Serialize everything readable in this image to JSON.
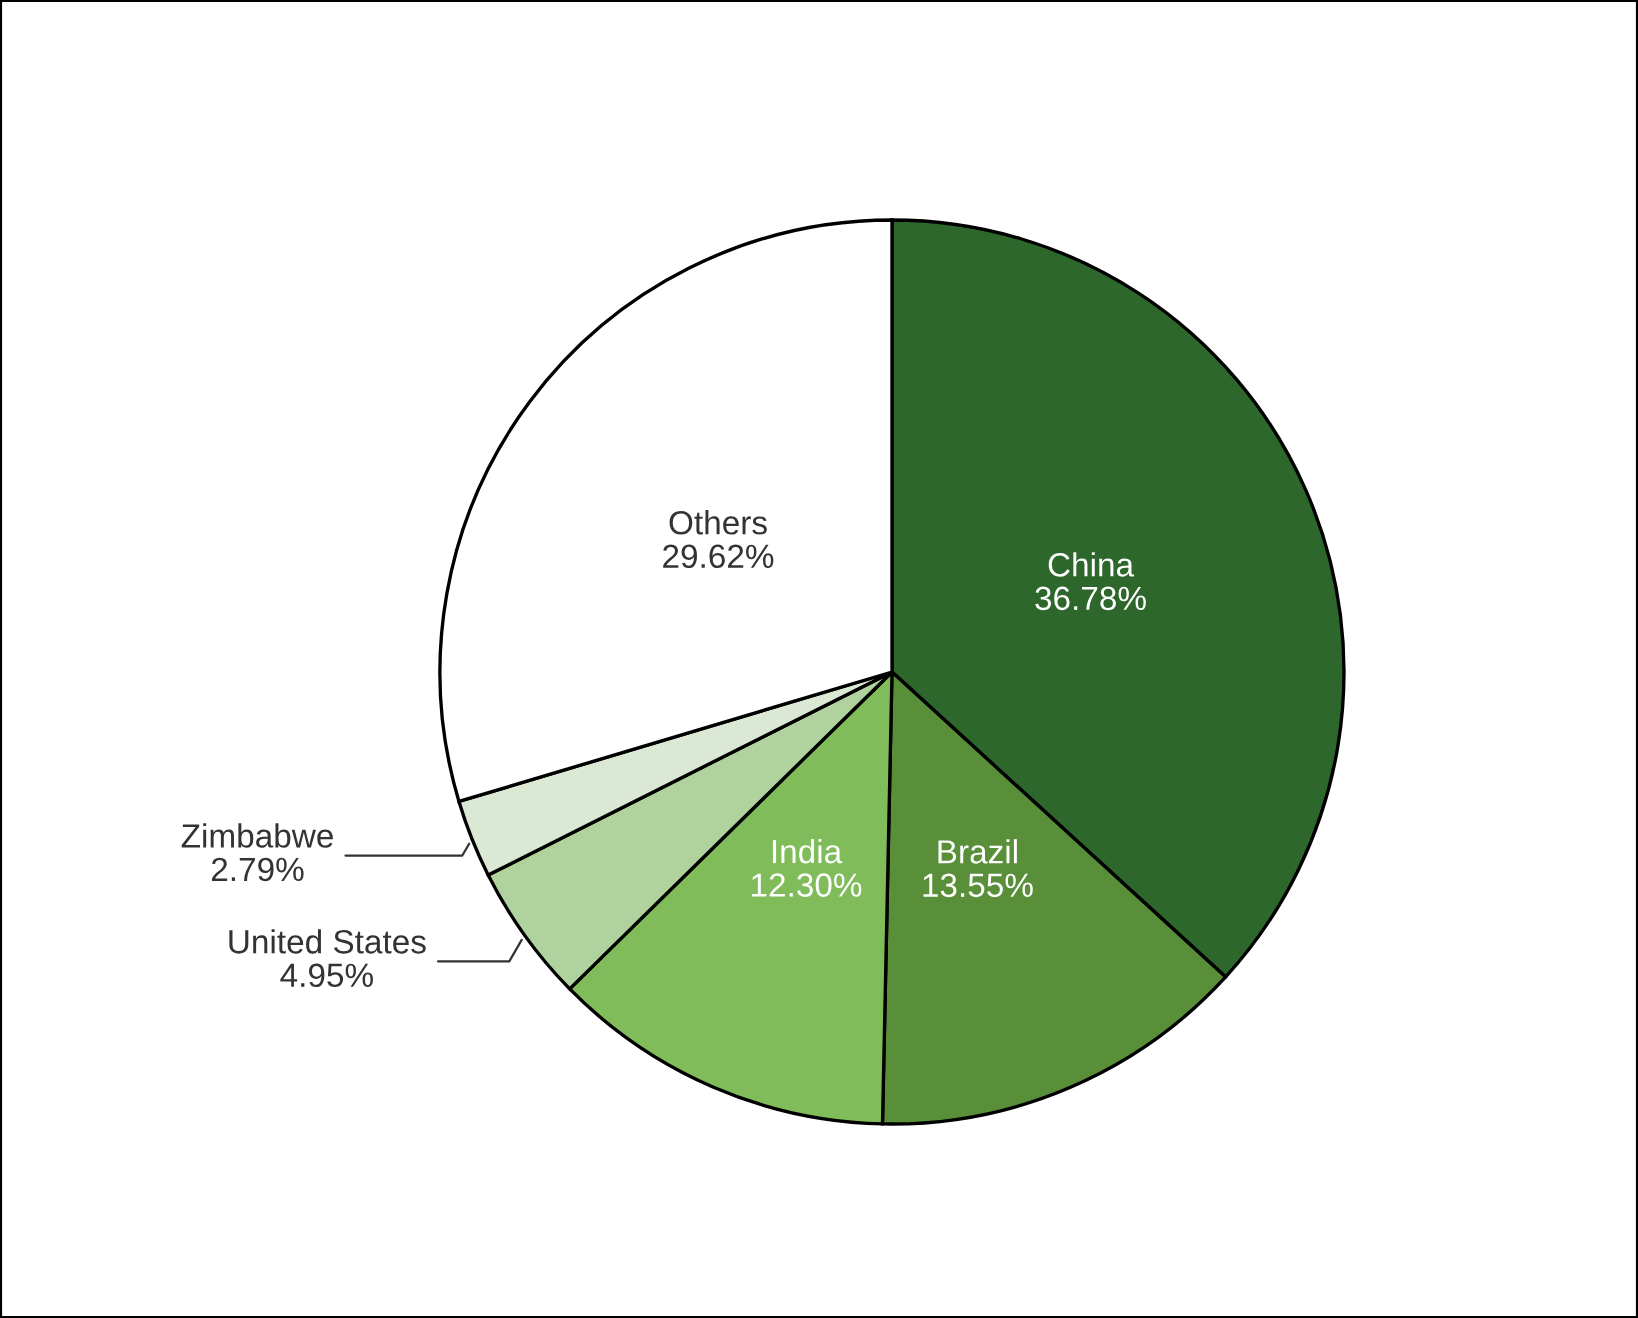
{
  "chart_data": {
    "type": "pie",
    "categories": [
      "China",
      "Brazil",
      "India",
      "United States",
      "Zimbabwe",
      "Others"
    ],
    "values": [
      36.78,
      13.55,
      12.3,
      4.95,
      2.79,
      29.62
    ],
    "value_labels": [
      "36.78%",
      "13.55%",
      "12.30%",
      "4.95%",
      "2.79%",
      "29.62%"
    ],
    "colors": [
      "#2e672b",
      "#5a8f3a",
      "#80bd5a",
      "#b0d29e",
      "#dbe8d4",
      "#ffffff"
    ],
    "legend": false
  }
}
